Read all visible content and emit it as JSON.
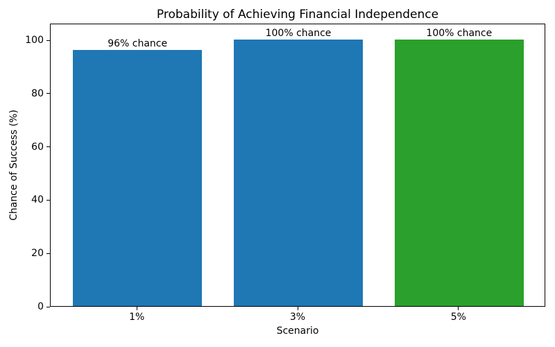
{
  "chart_data": {
    "type": "bar",
    "title": "Probability of Achieving Financial Independence",
    "xlabel": "Scenario",
    "ylabel": "Chance of Success (%)",
    "categories": [
      "1%",
      "3%",
      "5%"
    ],
    "values": [
      96,
      100,
      100
    ],
    "bar_labels": [
      "96% chance",
      "100% chance",
      "100% chance"
    ],
    "bar_colors": [
      "#1f77b4",
      "#1f77b4",
      "#2ca02c"
    ],
    "yticks": [
      0,
      20,
      40,
      60,
      80,
      100
    ],
    "ylim": [
      0,
      106.25
    ],
    "grid": false,
    "legend": "none",
    "background": "#ffffff",
    "bar_width_fraction": 0.8
  }
}
